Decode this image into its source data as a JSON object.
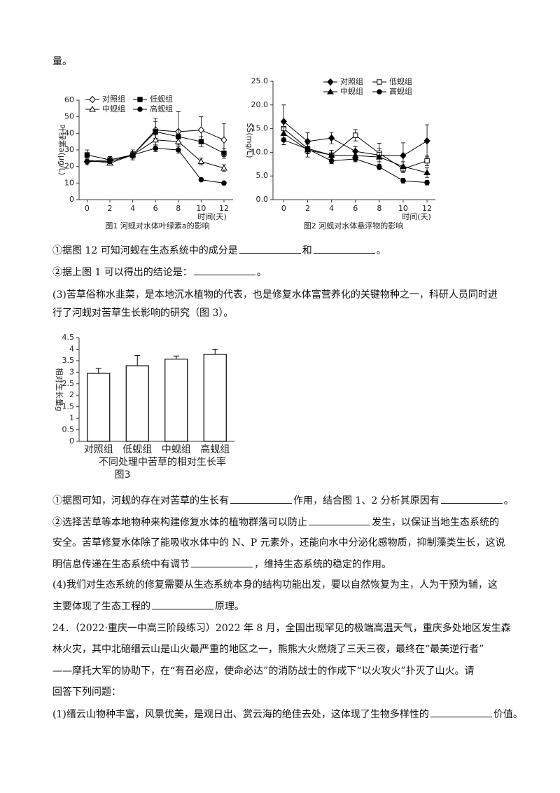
{
  "chart_data": [
    {
      "type": "line",
      "title": "图1 河蚬对水体叶绿素a的影响",
      "x_label": "时间(天)",
      "y_label": "叶绿素a(μg/L)",
      "x": [
        0,
        2,
        4,
        6,
        8,
        10,
        12
      ],
      "xlim": [
        -0.7,
        12.8
      ],
      "xticks": [
        0,
        2,
        4,
        6,
        8,
        10,
        12
      ],
      "ylim": [
        0,
        60
      ],
      "yticks": [
        0,
        10,
        20,
        30,
        40,
        50,
        60
      ],
      "series": [
        {
          "name": "对照组",
          "color": "#000000",
          "marker": "diamond",
          "filled": false,
          "values": [
            23,
            24,
            27,
            42,
            41,
            42,
            36
          ],
          "errors": [
            2,
            2,
            3,
            5,
            12,
            8,
            10
          ]
        },
        {
          "name": "低蚬组",
          "color": "#000000",
          "marker": "square",
          "filled": true,
          "values": [
            27,
            24,
            27,
            41,
            38,
            35,
            28
          ],
          "errors": [
            3,
            2,
            2,
            8,
            4,
            3,
            3
          ]
        },
        {
          "name": "中蚬组",
          "color": "#000000",
          "marker": "triangle",
          "filled": false,
          "values": [
            24,
            22,
            27,
            36,
            35,
            23,
            19
          ],
          "errors": [
            2,
            1,
            2,
            3,
            2,
            2,
            2
          ]
        },
        {
          "name": "高蚬组",
          "color": "#000000",
          "marker": "circle",
          "filled": true,
          "values": [
            23,
            23,
            27,
            31,
            30,
            12,
            10
          ],
          "errors": [
            1,
            1,
            1,
            2,
            2,
            1,
            1
          ]
        }
      ]
    },
    {
      "type": "line",
      "title": "图2 河蚬对水体悬浮物的影响",
      "x_label": "时间(天)",
      "y_label": "SS(mg/L)",
      "x": [
        0,
        2,
        4,
        6,
        8,
        10,
        12
      ],
      "xlim": [
        -0.9,
        12.7
      ],
      "xticks": [
        0,
        2,
        4,
        6,
        8,
        10,
        12
      ],
      "ylim": [
        0,
        25
      ],
      "yticks": [
        {
          "value": 0,
          "label": "0.0"
        },
        {
          "value": 5,
          "label": "5.0"
        },
        {
          "value": 10,
          "label": "10.0"
        },
        {
          "value": 15,
          "label": "15.0"
        },
        {
          "value": 20,
          "label": "20.0"
        },
        {
          "value": 25,
          "label": "25.0"
        }
      ],
      "series": [
        {
          "name": "对照组",
          "color": "#000000",
          "marker": "diamond",
          "filled": true,
          "values": [
            16.5,
            12.3,
            13.0,
            10.2,
            9.4,
            9.3,
            12.4
          ],
          "errors": [
            3.5,
            1.8,
            1.2,
            1.0,
            2.5,
            2.7,
            3.4
          ]
        },
        {
          "name": "低蚬组",
          "color": "#000000",
          "marker": "square",
          "filled": false,
          "values": [
            15.0,
            10.8,
            9.4,
            13.6,
            9.8,
            6.5,
            8.2
          ],
          "errors": [
            1.5,
            1.0,
            1.0,
            1.2,
            1.0,
            0.8,
            1.0
          ]
        },
        {
          "name": "中蚬组",
          "color": "#000000",
          "marker": "triangle",
          "filled": true,
          "values": [
            14.0,
            10.5,
            9.4,
            9.3,
            9.0,
            7.0,
            5.7
          ],
          "errors": [
            1.2,
            1.5,
            1.0,
            1.0,
            1.0,
            1.0,
            1.0
          ]
        },
        {
          "name": "高蚬组",
          "color": "#000000",
          "marker": "circle",
          "filled": true,
          "values": [
            12.6,
            10.7,
            8.2,
            8.6,
            6.9,
            4.0,
            3.6
          ],
          "errors": [
            1.0,
            1.0,
            0.6,
            0.6,
            0.6,
            0.5,
            0.5
          ]
        }
      ]
    },
    {
      "type": "bar",
      "title": "图3",
      "x_label": "不同处理中苦草的相对生长率",
      "y_label": "相对生长量g",
      "categories": [
        "对照组",
        "低蚬组",
        "中蚬组",
        "高蚬组"
      ],
      "values": [
        2.95,
        3.28,
        3.57,
        3.78
      ],
      "errors": [
        0.22,
        0.45,
        0.13,
        0.22
      ],
      "color": "#ffffff",
      "ylim": [
        0,
        4.5
      ],
      "yticks": [
        0,
        0.5,
        1,
        1.5,
        2,
        2.5,
        3,
        3.5,
        4,
        4.5
      ]
    }
  ],
  "document": {
    "lines": [
      [
        "量。"
      ],
      [
        "①据图 12 可知河蚬在生态系统中的成分是",
        "和",
        "。"
      ],
      [
        "②据上图 1 可以得出的结论是：",
        "。"
      ],
      [
        "(3)苦草俗称水韭菜，是本地沉水植物的代表，也是修复水体富营养化的关键物种之一，科研人员同时进"
      ],
      [
        "行了河蚬对苦草生长影响的研究（图 3）。"
      ],
      [
        "①据图可知，河蚬的存在对苦草的生长有",
        "作用，结合图 1、2 分析其原因有",
        "。"
      ],
      [
        "②选择苦草等本地物种来构建修复水体的植物群落可以防止",
        "发生，以保证当地生态系统的"
      ],
      [
        "安全。苦草修复水体除了能吸收水体中的 N、P 元素外，还能向水中分泌化感物质，抑制藻类生长，这说"
      ],
      [
        "明信息传递在生态系统中有调节",
        "，维持生态系统的稳定的作用。"
      ],
      [
        "(4)我们对生态系统的修复需要从生态系统本身的结构功能出发，要以自然恢复为主，人为干预为辅，这"
      ],
      [
        "主要体现了生态工程的",
        "原理。"
      ],
      [
        "24．（2022·重庆一中高三阶段练习）2022 年 8 月，全国出现罕见的极端高温天气，重庆多处地区发生森"
      ],
      [
        "林火灾，其中北碚缙云山是山火最严重的地区之一，熊熊大火燃烧了三天三夜，最终在“最美逆行者”"
      ],
      [
        "——摩托大军的协助下，在“有召必应，使命必达”的消防战士的作成下“以火攻火”扑灭了山火。请"
      ],
      [
        "回答下列问题："
      ],
      [
        "(1)缙云山物种丰富，风景优美，是观日出、赏云海的绝佳去处，这体现了生物多样性的",
        "价值。"
      ]
    ]
  }
}
